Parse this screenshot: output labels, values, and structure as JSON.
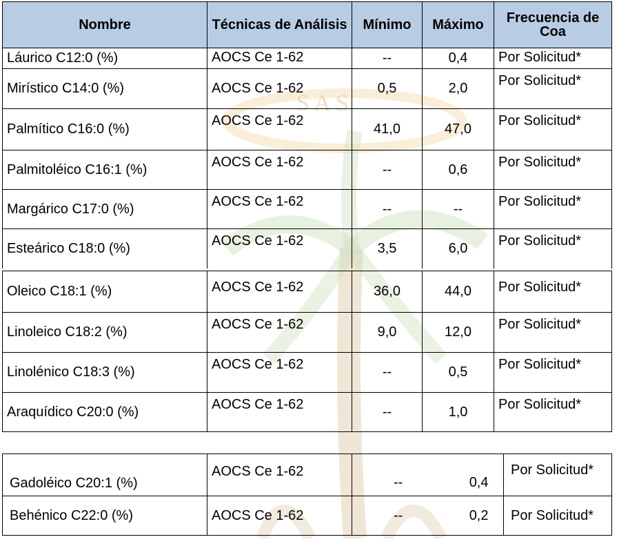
{
  "headers": {
    "name": "Nombre",
    "technique": "Técnicas de Análisis",
    "min": "Mínimo",
    "max": "Máximo",
    "freq": "Frecuencia de Coa"
  },
  "watermark_text": "S A S",
  "rows_a": [
    {
      "name": "Láurico C12:0 (%)",
      "technique": "AOCS Ce 1-62",
      "min": "--",
      "max": "0,4",
      "freq": "Por Solicitud*"
    },
    {
      "name": "Mirístico C14:0 (%)",
      "technique": "AOCS Ce 1-62",
      "min": "0,5",
      "max": "2,0",
      "freq": "Por Solicitud*"
    },
    {
      "name": "Palmítico C16:0 (%)",
      "technique": "AOCS Ce 1-62",
      "min": "41,0",
      "max": "47,0",
      "freq": "Por Solicitud*"
    },
    {
      "name": "Palmitoléico C16:1 (%)",
      "technique": "AOCS Ce 1-62",
      "min": "--",
      "max": "0,6",
      "freq": "Por Solicitud*"
    },
    {
      "name": "Margárico C17:0 (%)",
      "technique": "AOCS Ce 1-62",
      "min": "--",
      "max": "--",
      "freq": "Por Solicitud*"
    },
    {
      "name": "Esteárico C18:0 (%)",
      "technique": "AOCS Ce 1-62",
      "min": "3,5",
      "max": "6,0",
      "freq": "Por Solicitud*"
    }
  ],
  "rows_b": [
    {
      "name": "Oleico C18:1 (%)",
      "technique": "AOCS Ce 1-62",
      "min": "36,0",
      "max": "44,0",
      "freq": "Por Solicitud*"
    },
    {
      "name": "Linoleico C18:2 (%)",
      "technique": "AOCS Ce 1-62",
      "min": "9,0",
      "max": "12,0",
      "freq": "Por Solicitud*"
    },
    {
      "name": "Linolénico C18:3 (%)",
      "technique": "AOCS Ce 1-62",
      "min": "--",
      "max": "0,5",
      "freq": "Por Solicitud*"
    },
    {
      "name": "Araquídico C20:0 (%)",
      "technique": "AOCS Ce 1-62",
      "min": "--",
      "max": "1,0",
      "freq": "Por Solicitud*"
    }
  ],
  "rows_c": [
    {
      "name": "Gadoléico C20:1 (%)",
      "technique": "AOCS Ce 1-62",
      "min": "--",
      "max": "0,4",
      "freq": "Por Solicitud*"
    },
    {
      "name": "Behénico C22:0 (%)",
      "technique": "AOCS Ce 1-62",
      "min": "--",
      "max": "0,2",
      "freq": "Por Solicitud*"
    }
  ]
}
